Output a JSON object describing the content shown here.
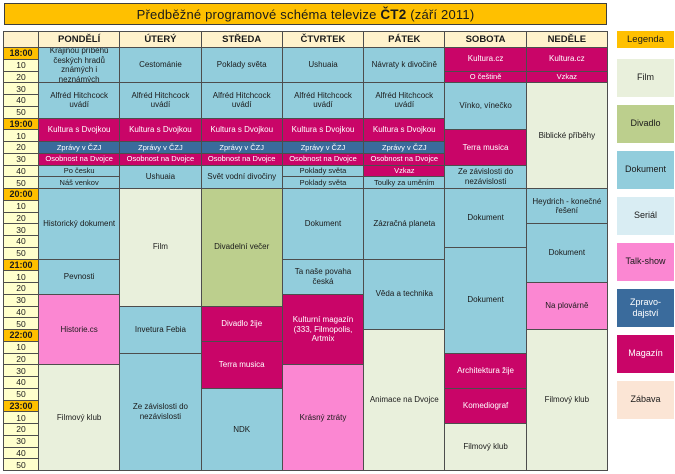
{
  "title": {
    "prefix": "Předběžné programové schéma televize ",
    "channel": "ČT2",
    "suffix": " (září 2011)"
  },
  "colors": {
    "film": "#E9F0DC",
    "divadlo": "#BCCF8D",
    "dokument": "#92CDDC",
    "serial": "#D9EDF3",
    "talkshow": "#FB87D2",
    "zpravodajstvi": "#3A6B9C",
    "magazin": "#C90568",
    "zabava": "#FBE5D5",
    "hour_bg": "#FFC000",
    "minute_bg": "#FFFFCC",
    "header_bg": "#FFF2CC",
    "title_bg": "#FFC000",
    "grid_line": "#4d4d4d",
    "light_text": "#FFFFFF",
    "dark_text": "#1a1a1a"
  },
  "light_text_categories": [
    "zpravodajstvi",
    "magazin"
  ],
  "time": {
    "rows": 36,
    "hours": [
      "18:00",
      "19:00",
      "20:00",
      "21:00",
      "22:00",
      "23:00"
    ],
    "minute_labels": [
      "10",
      "20",
      "30",
      "40",
      "50"
    ]
  },
  "schedule": {
    "days": [
      {
        "day": "PONDĚLÍ",
        "blocks": [
          {
            "label": "Krajinou příběhů českých hradů známých i neznámých",
            "rows": 3,
            "category": "dokument"
          },
          {
            "label": "Alfréd Hitchcock uvádí",
            "rows": 3,
            "category": "dokument"
          },
          {
            "label": "Kultura s Dvojkou",
            "rows": 2,
            "category": "magazin"
          },
          {
            "label": "Zprávy v ČZJ",
            "rows": 1,
            "category": "zpravodajstvi"
          },
          {
            "label": "Osobnost na Dvojce",
            "rows": 1,
            "category": "magazin"
          },
          {
            "label": "Po česku",
            "rows": 1,
            "category": "dokument"
          },
          {
            "label": "Náš venkov",
            "rows": 1,
            "category": "dokument"
          },
          {
            "label": "Historický dokument",
            "rows": 6,
            "category": "dokument"
          },
          {
            "label": "Pevnosti",
            "rows": 3,
            "category": "dokument"
          },
          {
            "label": "Historie.cs",
            "rows": 6,
            "category": "talkshow"
          },
          {
            "label": "Filmový klub",
            "rows": 9,
            "category": "film"
          }
        ]
      },
      {
        "day": "ÚTERÝ",
        "blocks": [
          {
            "label": "Cestománie",
            "rows": 3,
            "category": "dokument"
          },
          {
            "label": "Alfréd Hitchcock uvádí",
            "rows": 3,
            "category": "dokument"
          },
          {
            "label": "Kultura s Dvojkou",
            "rows": 2,
            "category": "magazin"
          },
          {
            "label": "Zprávy v ČZJ",
            "rows": 1,
            "category": "zpravodajstvi"
          },
          {
            "label": "Osobnost na Dvojce",
            "rows": 1,
            "category": "magazin"
          },
          {
            "label": "Ushuaia",
            "rows": 2,
            "category": "dokument"
          },
          {
            "label": "Film",
            "rows": 10,
            "category": "film"
          },
          {
            "label": "Invetura Febia",
            "rows": 4,
            "category": "dokument"
          },
          {
            "label": "Ze závislosti do nezávislosti",
            "rows": 10,
            "category": "dokument"
          }
        ]
      },
      {
        "day": "STŘEDA",
        "blocks": [
          {
            "label": "Poklady světa",
            "rows": 3,
            "category": "dokument"
          },
          {
            "label": "Alfréd Hitchcock uvádí",
            "rows": 3,
            "category": "dokument"
          },
          {
            "label": "Kultura s Dvojkou",
            "rows": 2,
            "category": "magazin"
          },
          {
            "label": "Zprávy v ČZJ",
            "rows": 1,
            "category": "zpravodajstvi"
          },
          {
            "label": "Osobnost na Dvojce",
            "rows": 1,
            "category": "magazin"
          },
          {
            "label": "Svět vodní divočiny",
            "rows": 2,
            "category": "dokument"
          },
          {
            "label": "Divadelní večer",
            "rows": 10,
            "category": "divadlo"
          },
          {
            "label": "Divadlo žije",
            "rows": 3,
            "category": "magazin"
          },
          {
            "label": "Terra musica",
            "rows": 4,
            "category": "magazin"
          },
          {
            "label": "NDK",
            "rows": 7,
            "category": "dokument"
          }
        ]
      },
      {
        "day": "ČTVRTEK",
        "blocks": [
          {
            "label": "Ushuaia",
            "rows": 3,
            "category": "dokument"
          },
          {
            "label": "Alfréd Hitchcock uvádí",
            "rows": 3,
            "category": "dokument"
          },
          {
            "label": "Kultura s Dvojkou",
            "rows": 2,
            "category": "magazin"
          },
          {
            "label": "Zprávy v ČZJ",
            "rows": 1,
            "category": "zpravodajstvi"
          },
          {
            "label": "Osobnost na Dvojce",
            "rows": 1,
            "category": "magazin"
          },
          {
            "label": "Poklady světa",
            "rows": 1,
            "category": "dokument"
          },
          {
            "label": "Poklady světa",
            "rows": 1,
            "category": "dokument"
          },
          {
            "label": "Dokument",
            "rows": 6,
            "category": "dokument"
          },
          {
            "label": "Ta naše povaha česká",
            "rows": 3,
            "category": "dokument"
          },
          {
            "label": "Kulturní magazín (333, Filmopolis, Artmix",
            "rows": 6,
            "category": "magazin"
          },
          {
            "label": "Krásný ztráty",
            "rows": 9,
            "category": "talkshow"
          }
        ]
      },
      {
        "day": "PÁTEK",
        "blocks": [
          {
            "label": "Návraty k divočině",
            "rows": 3,
            "category": "dokument"
          },
          {
            "label": "Alfréd Hitchcock uvádí",
            "rows": 3,
            "category": "dokument"
          },
          {
            "label": "Kultura s Dvojkou",
            "rows": 2,
            "category": "magazin"
          },
          {
            "label": "Zprávy v ČZJ",
            "rows": 1,
            "category": "zpravodajstvi"
          },
          {
            "label": "Osobnost na Dvojce",
            "rows": 1,
            "category": "magazin"
          },
          {
            "label": "Vzkaz",
            "rows": 1,
            "category": "magazin"
          },
          {
            "label": "Toulky za uměním",
            "rows": 1,
            "category": "dokument"
          },
          {
            "label": "Zázračná planeta",
            "rows": 6,
            "category": "dokument"
          },
          {
            "label": "Věda a technika",
            "rows": 6,
            "category": "dokument"
          },
          {
            "label": "Animace na Dvojce",
            "rows": 12,
            "category": "film"
          }
        ]
      },
      {
        "day": "SOBOTA",
        "blocks": [
          {
            "label": "Kultura.cz",
            "rows": 2,
            "category": "magazin"
          },
          {
            "label": "O češtině",
            "rows": 1,
            "category": "magazin"
          },
          {
            "label": "Vínko, vínečko",
            "rows": 4,
            "category": "dokument"
          },
          {
            "label": "Terra musica",
            "rows": 3,
            "category": "magazin"
          },
          {
            "label": "Ze závislosti do nezávislosti",
            "rows": 2,
            "category": "dokument"
          },
          {
            "label": "Dokument",
            "rows": 5,
            "category": "dokument"
          },
          {
            "label": "Dokument",
            "rows": 9,
            "category": "dokument"
          },
          {
            "label": "Architektura žije",
            "rows": 3,
            "category": "magazin"
          },
          {
            "label": "Komediograf",
            "rows": 3,
            "category": "magazin"
          },
          {
            "label": "Filmový klub",
            "rows": 4,
            "category": "film"
          }
        ]
      },
      {
        "day": "NEDĚLE",
        "blocks": [
          {
            "label": "Kultura.cz",
            "rows": 2,
            "category": "magazin"
          },
          {
            "label": "Vzkaz",
            "rows": 1,
            "category": "magazin"
          },
          {
            "label": "Biblické příběhy",
            "rows": 9,
            "category": "film"
          },
          {
            "label": "Heydrich - konečné řešení",
            "rows": 3,
            "category": "dokument"
          },
          {
            "label": "Dokument",
            "rows": 5,
            "category": "dokument"
          },
          {
            "label": "Na plovárně",
            "rows": 4,
            "category": "talkshow"
          },
          {
            "label": "Filmový klub",
            "rows": 12,
            "category": "film"
          }
        ]
      }
    ]
  },
  "legend": {
    "title": "Legenda",
    "items": [
      {
        "label": "Film",
        "category": "film"
      },
      {
        "label": "Divadlo",
        "category": "divadlo"
      },
      {
        "label": "Dokument",
        "category": "dokument"
      },
      {
        "label": "Seriál",
        "category": "serial"
      },
      {
        "label": "Talk-show",
        "category": "talkshow"
      },
      {
        "label": "Zpravo-\ndajství",
        "category": "zpravodajstvi"
      },
      {
        "label": "Magazín",
        "category": "magazin"
      },
      {
        "label": "Zábava",
        "category": "zabava"
      }
    ]
  }
}
